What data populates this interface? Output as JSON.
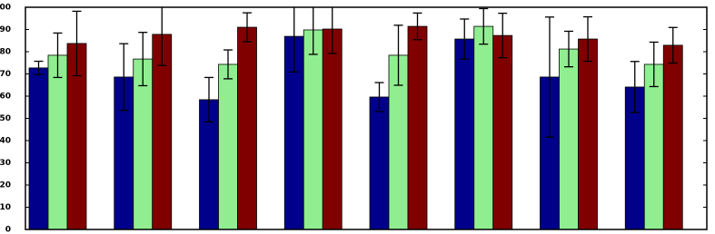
{
  "chart_data": {
    "type": "bar",
    "categories": [
      null,
      null,
      null,
      null,
      null,
      null,
      null,
      null
    ],
    "series": [
      {
        "color": "#00008b",
        "values": [
          72.7,
          68.6,
          58.4,
          86.9,
          59.6,
          85.7,
          68.6,
          64.1
        ],
        "errors": [
          3,
          15,
          10,
          16,
          6.5,
          9,
          27,
          11.5
        ]
      },
      {
        "color": "#90ee90",
        "values": [
          78.4,
          76.7,
          74.3,
          89.8,
          78.4,
          91.4,
          81.2,
          74.3
        ],
        "errors": [
          10,
          12,
          6.5,
          11,
          13.5,
          8,
          8,
          10
        ]
      },
      {
        "color": "#800000",
        "values": [
          83.7,
          87.8,
          91,
          90.2,
          91.4,
          87.3,
          85.7,
          82.9
        ],
        "errors": [
          14.5,
          14,
          6.5,
          11,
          6,
          10,
          10,
          8
        ]
      }
    ],
    "ylim": [
      0,
      100
    ],
    "yticks": [
      0,
      10,
      20,
      30,
      40,
      50,
      60,
      70,
      80,
      90,
      100
    ]
  }
}
